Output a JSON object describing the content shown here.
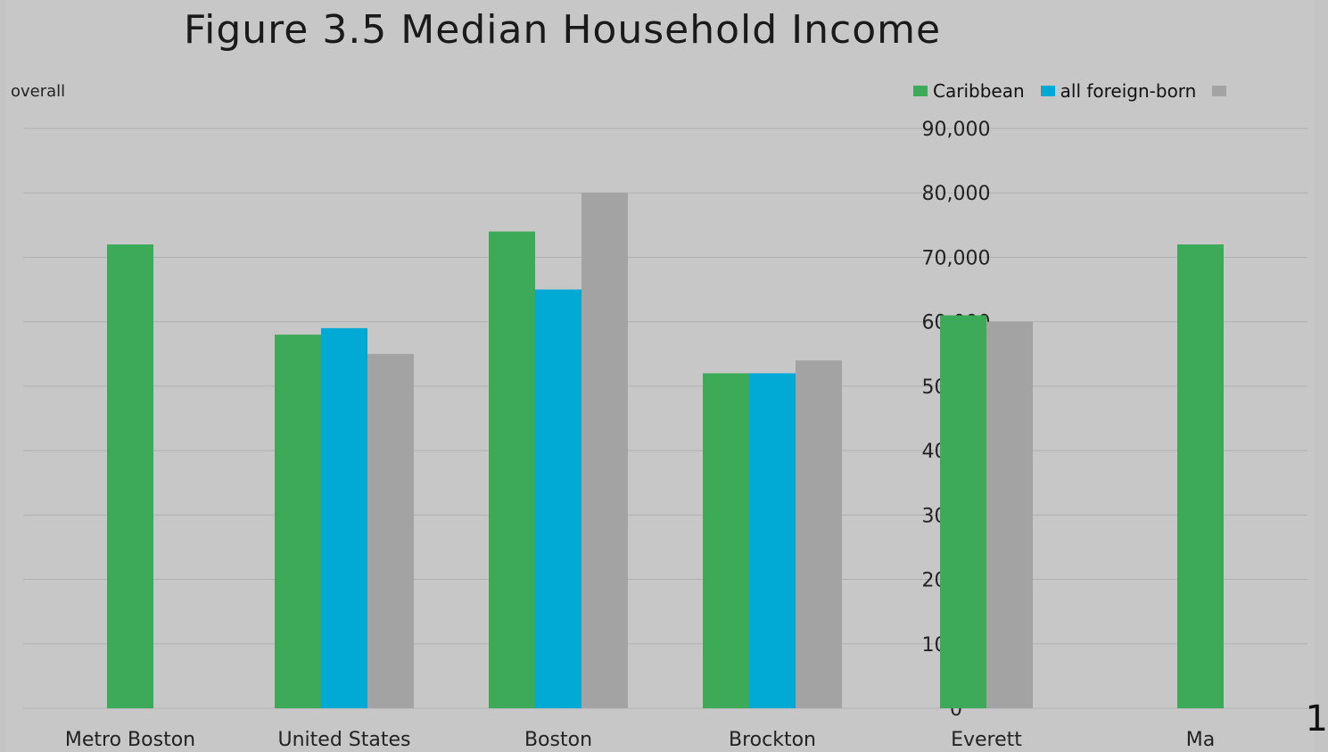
{
  "title": "Figure 3.5 Median Household Income",
  "subtitle": "overall",
  "page_number": "1",
  "legend": [
    {
      "label": "Caribbean",
      "color": "#3daa59"
    },
    {
      "label": "all foreign-born",
      "color": "#00aad4"
    },
    {
      "label": "",
      "color": "#a3a3a3"
    }
  ],
  "chart_data": {
    "type": "bar",
    "categories": [
      "Metro Boston",
      "United States",
      "Boston",
      "Brockton",
      "Everett",
      "Ma"
    ],
    "series": [
      {
        "name": "Caribbean",
        "color": "#3daa59",
        "values": [
          72000,
          58000,
          74000,
          52000,
          61000,
          72000
        ]
      },
      {
        "name": "all foreign-born",
        "color": "#00aad4",
        "values": [
          null,
          59000,
          65000,
          52000,
          null,
          null
        ]
      },
      {
        "name": "",
        "color": "#a3a3a3",
        "values": [
          null,
          55000,
          80000,
          54000,
          60000,
          null
        ]
      }
    ],
    "ylim": [
      0,
      90000
    ],
    "yticks": [
      "0",
      "10,000",
      "20,000",
      "30,000",
      "40,000",
      "50,000",
      "60,000",
      "70,000",
      "80,000",
      "90,000"
    ]
  }
}
